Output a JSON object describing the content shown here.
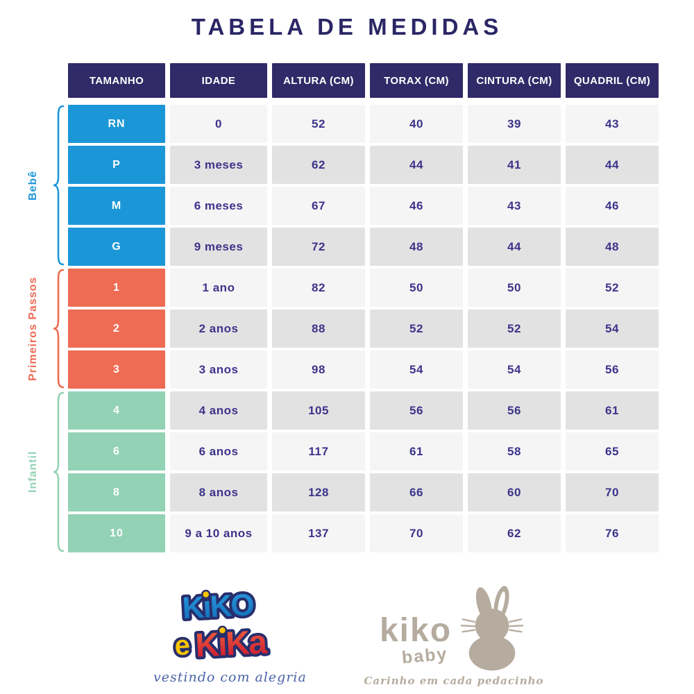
{
  "title": "TABELA DE MEDIDAS",
  "title_color": "#2B2665",
  "table": {
    "headers": [
      "TAMANHO",
      "IDADE",
      "ALTURA (CM)",
      "TORAX (CM)",
      "CINTURA (CM)",
      "QUADRIL (CM)"
    ],
    "header_bg": "#312A68",
    "text_color": "#3D3389",
    "row_colors": {
      "light": "#F5F5F6",
      "dark": "#E2E2E3"
    },
    "groups": [
      {
        "name": "Bebê",
        "color": "#1B97D8",
        "rows": [
          {
            "size": "RN",
            "age": "0",
            "height": "52",
            "chest": "40",
            "waist": "39",
            "hip": "43"
          },
          {
            "size": "P",
            "age": "3 meses",
            "height": "62",
            "chest": "44",
            "waist": "41",
            "hip": "44"
          },
          {
            "size": "M",
            "age": "6 meses",
            "height": "67",
            "chest": "46",
            "waist": "43",
            "hip": "46"
          },
          {
            "size": "G",
            "age": "9 meses",
            "height": "72",
            "chest": "48",
            "waist": "44",
            "hip": "48"
          }
        ]
      },
      {
        "name": "Primeiros Passos",
        "color": "#EE6B54",
        "rows": [
          {
            "size": "1",
            "age": "1 ano",
            "height": "82",
            "chest": "50",
            "waist": "50",
            "hip": "52"
          },
          {
            "size": "2",
            "age": "2 anos",
            "height": "88",
            "chest": "52",
            "waist": "52",
            "hip": "54"
          },
          {
            "size": "3",
            "age": "3 anos",
            "height": "98",
            "chest": "54",
            "waist": "54",
            "hip": "56"
          }
        ]
      },
      {
        "name": "Infantil",
        "color": "#93D2B5",
        "rows": [
          {
            "size": "4",
            "age": "4 anos",
            "height": "105",
            "chest": "56",
            "waist": "56",
            "hip": "61"
          },
          {
            "size": "6",
            "age": "6 anos",
            "height": "117",
            "chest": "61",
            "waist": "58",
            "hip": "65"
          },
          {
            "size": "8",
            "age": "8 anos",
            "height": "128",
            "chest": "66",
            "waist": "60",
            "hip": "70"
          },
          {
            "size": "10",
            "age": "9 a 10 anos",
            "height": "137",
            "chest": "70",
            "waist": "62",
            "hip": "76"
          }
        ]
      }
    ]
  },
  "logos": {
    "kiko_e_kika": {
      "line1": "KiKO",
      "e": "e",
      "line2": "KiKa",
      "tagline": "vestindo com alegria",
      "blue_top": "#2B9BDE",
      "blue_bottom": "#0E6CB8",
      "yellow": "#F8C500",
      "red_top": "#F2653E",
      "red_bottom": "#C8102E",
      "outline": "#282E6C",
      "tagline_color": "#4A63A8"
    },
    "kiko_baby": {
      "name": "kiko",
      "sub": "baby",
      "tagline": "Carinho em cada pedacinho",
      "color": "#B5AB9E"
    }
  }
}
